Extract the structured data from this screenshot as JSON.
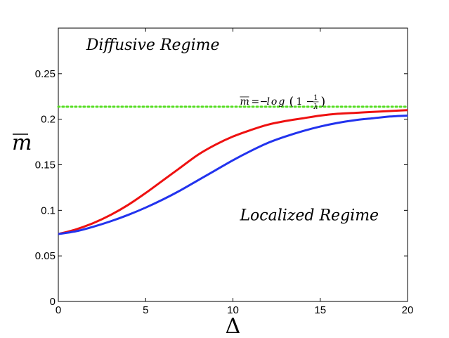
{
  "chart_data": {
    "type": "line",
    "xlabel": "Δ",
    "ylabel": "m",
    "xlim": [
      0,
      20
    ],
    "ylim": [
      0,
      0.3
    ],
    "xticks": [
      0,
      5,
      10,
      15,
      20
    ],
    "yticks": [
      0,
      0.05,
      0.1,
      0.15,
      0.2,
      0.25
    ],
    "xtick_labels": [
      "0",
      "5",
      "10",
      "15",
      "20"
    ],
    "ytick_labels": [
      "0",
      "0.05",
      "0.1",
      "0.15",
      "0.2",
      "0.25"
    ],
    "grid": false,
    "series": [
      {
        "color": "#ee1111",
        "style": "solid",
        "x": [
          0,
          1,
          2,
          3,
          4,
          5,
          6,
          7,
          8,
          9,
          10,
          11,
          12,
          13,
          14,
          15,
          16,
          17,
          18,
          19,
          20
        ],
        "y": [
          0.074,
          0.079,
          0.086,
          0.095,
          0.106,
          0.119,
          0.133,
          0.147,
          0.161,
          0.172,
          0.181,
          0.188,
          0.194,
          0.198,
          0.201,
          0.204,
          0.206,
          0.207,
          0.208,
          0.209,
          0.21
        ]
      },
      {
        "color": "#2233ee",
        "style": "solid",
        "x": [
          0,
          1,
          2,
          3,
          4,
          5,
          6,
          7,
          8,
          9,
          10,
          11,
          12,
          13,
          14,
          15,
          16,
          17,
          18,
          19,
          20
        ],
        "y": [
          0.074,
          0.077,
          0.082,
          0.088,
          0.095,
          0.103,
          0.112,
          0.122,
          0.133,
          0.144,
          0.155,
          0.165,
          0.174,
          0.181,
          0.187,
          0.192,
          0.196,
          0.199,
          0.201,
          0.203,
          0.204
        ]
      },
      {
        "color": "#55dd22",
        "style": "dotted",
        "x": [
          0,
          20
        ],
        "y": [
          0.2137,
          0.2137
        ]
      }
    ],
    "annotations": {
      "diffusive": {
        "text": "Diffusive Regime",
        "x": 1.6,
        "y": 0.276
      },
      "localized": {
        "text": "Localized Regime",
        "x": 10.4,
        "y": 0.089
      },
      "equation": {
        "lhs": "m",
        "eq": "=",
        "minus": "−",
        "log": "log",
        "open": "(",
        "one": "1",
        "minus2": "−",
        "num": "1",
        "den": "λ",
        "close": ")",
        "x": 10.4,
        "y": 0.216
      }
    }
  }
}
